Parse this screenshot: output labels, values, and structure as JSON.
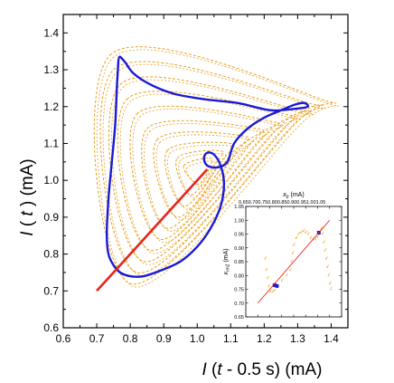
{
  "colors": {
    "trajectory": "#e8a020",
    "orbit": "#1a1ad6",
    "diagonal": "#e8231a",
    "inset_orbit": "#1a1ad6"
  },
  "chart_data": [
    {
      "type": "line",
      "xlabel_parts": [
        "I",
        " (",
        "t",
        " - 0.5 s) (mA)"
      ],
      "ylabel_parts": [
        "I",
        " ( ",
        "t",
        " ) (mA)"
      ],
      "xlim": [
        0.6,
        1.45
      ],
      "ylim": [
        0.6,
        1.45
      ],
      "xticks": [
        "0.6",
        "0.7",
        "0.8",
        "0.9",
        "1.0",
        "1.1",
        "1.2",
        "1.3",
        "1.4"
      ],
      "yticks": [
        "0.6",
        "0.7",
        "0.8",
        "0.9",
        "1.0",
        "1.1",
        "1.2",
        "1.3",
        "1.4"
      ],
      "grid": false,
      "series": [
        {
          "style": "dashed",
          "color": "#e8a020",
          "kind": "spiral_family",
          "loops": [
            [
              [
                0.74,
                1.34
              ],
              [
                1.37,
                1.22
              ],
              [
                1.3,
                1.16
              ],
              [
                0.8,
                0.72
              ]
            ],
            [
              [
                0.75,
                1.3
              ],
              [
                1.33,
                1.21
              ],
              [
                1.28,
                1.16
              ],
              [
                0.82,
                0.75
              ]
            ],
            [
              [
                0.77,
                1.26
              ],
              [
                1.3,
                1.19
              ],
              [
                1.25,
                1.15
              ],
              [
                0.84,
                0.78
              ]
            ],
            [
              [
                0.79,
                1.22
              ],
              [
                1.26,
                1.18
              ],
              [
                1.21,
                1.13
              ],
              [
                0.86,
                0.81
              ]
            ],
            [
              [
                0.82,
                1.18
              ],
              [
                1.22,
                1.16
              ],
              [
                1.17,
                1.11
              ],
              [
                0.89,
                0.84
              ]
            ],
            [
              [
                0.85,
                1.14
              ],
              [
                1.18,
                1.14
              ],
              [
                1.13,
                1.09
              ],
              [
                0.91,
                0.87
              ]
            ],
            [
              [
                0.88,
                1.11
              ],
              [
                1.14,
                1.12
              ],
              [
                1.1,
                1.07
              ],
              [
                0.94,
                0.9
              ]
            ],
            [
              [
                0.91,
                1.08
              ],
              [
                1.1,
                1.1
              ],
              [
                1.07,
                1.05
              ],
              [
                0.96,
                0.93
              ]
            ],
            [
              [
                0.94,
                1.06
              ],
              [
                1.07,
                1.08
              ],
              [
                1.05,
                1.04
              ],
              [
                0.98,
                0.96
              ]
            ],
            [
              [
                0.96,
                1.04
              ],
              [
                1.04,
                1.06
              ],
              [
                1.03,
                1.02
              ],
              [
                1.0,
                0.99
              ]
            ]
          ]
        },
        {
          "style": "solid",
          "color": "#1a1ad6",
          "kind": "orbit",
          "x": [
            0.765,
            0.76,
            0.755,
            0.745,
            0.735,
            0.73,
            0.735,
            0.75,
            0.77,
            0.8,
            0.84,
            0.89,
            0.95,
            1.0,
            1.04,
            1.07,
            1.08,
            1.07,
            1.05,
            1.03,
            1.02,
            1.03,
            1.06,
            1.09,
            1.11,
            1.15,
            1.2,
            1.25,
            1.29,
            1.32,
            1.33,
            1.3,
            1.22,
            1.12,
            1.02,
            0.93,
            0.86,
            0.81,
            0.785,
            0.77,
            0.765
          ],
          "y": [
            1.33,
            1.25,
            1.15,
            1.05,
            0.95,
            0.85,
            0.8,
            0.77,
            0.75,
            0.74,
            0.74,
            0.755,
            0.78,
            0.82,
            0.87,
            0.93,
            0.99,
            1.04,
            1.07,
            1.075,
            1.06,
            1.04,
            1.035,
            1.05,
            1.1,
            1.14,
            1.17,
            1.19,
            1.205,
            1.21,
            1.2,
            1.195,
            1.19,
            1.21,
            1.22,
            1.235,
            1.26,
            1.29,
            1.32,
            1.335,
            1.33
          ]
        },
        {
          "style": "solid",
          "color": "#e8231a",
          "kind": "diagonal",
          "x": [
            0.7,
            1.03
          ],
          "y": [
            0.7,
            1.03
          ]
        }
      ]
    },
    {
      "type": "scatter",
      "xlabel_parts": [
        "x",
        "p",
        " (mA)"
      ],
      "ylabel_parts": [
        "x",
        "rm2",
        " (mA)"
      ],
      "xlim": [
        0.65,
        1.05
      ],
      "ylim": [
        0.65,
        1.05
      ],
      "xticks": [
        "0.65",
        "0.70",
        "0.75",
        "0.80",
        "0.85",
        "0.90",
        "0.95",
        "1.00",
        "1.05"
      ],
      "yticks": [
        "0.65",
        "0.70",
        "0.75",
        "0.80",
        "0.85",
        "0.90",
        "0.95",
        "1.00",
        "1.05"
      ],
      "series": [
        {
          "color": "#e8a020",
          "kind": "cloud",
          "x": [
            0.73,
            0.735,
            0.74,
            0.745,
            0.75,
            0.76,
            0.77,
            0.78,
            0.8,
            0.82,
            0.835,
            0.84,
            0.845,
            0.85,
            0.86,
            0.87,
            0.88,
            0.89,
            0.9,
            0.91,
            0.92,
            0.93,
            0.94,
            0.95,
            0.96,
            0.965,
            0.97,
            0.975,
            0.98,
            0.985,
            0.99,
            0.995,
            1.0,
            1.005
          ],
          "y": [
            0.86,
            0.82,
            0.79,
            0.76,
            0.74,
            0.74,
            0.745,
            0.76,
            0.78,
            0.8,
            0.82,
            0.85,
            0.88,
            0.91,
            0.935,
            0.95,
            0.955,
            0.96,
            0.955,
            0.95,
            0.935,
            0.93,
            0.93,
            0.94,
            0.96,
            0.97,
            0.95,
            0.92,
            0.89,
            0.86,
            0.83,
            0.8,
            0.77,
            0.75
          ]
        },
        {
          "color": "#1a1ad6",
          "kind": "fixed_points",
          "x": [
            0.77,
            0.78,
            0.955
          ],
          "y": [
            0.765,
            0.762,
            0.955
          ]
        },
        {
          "color": "#e8231a",
          "kind": "diagonal",
          "x": [
            0.7,
            1.0
          ],
          "y": [
            0.7,
            1.0
          ]
        }
      ]
    }
  ]
}
